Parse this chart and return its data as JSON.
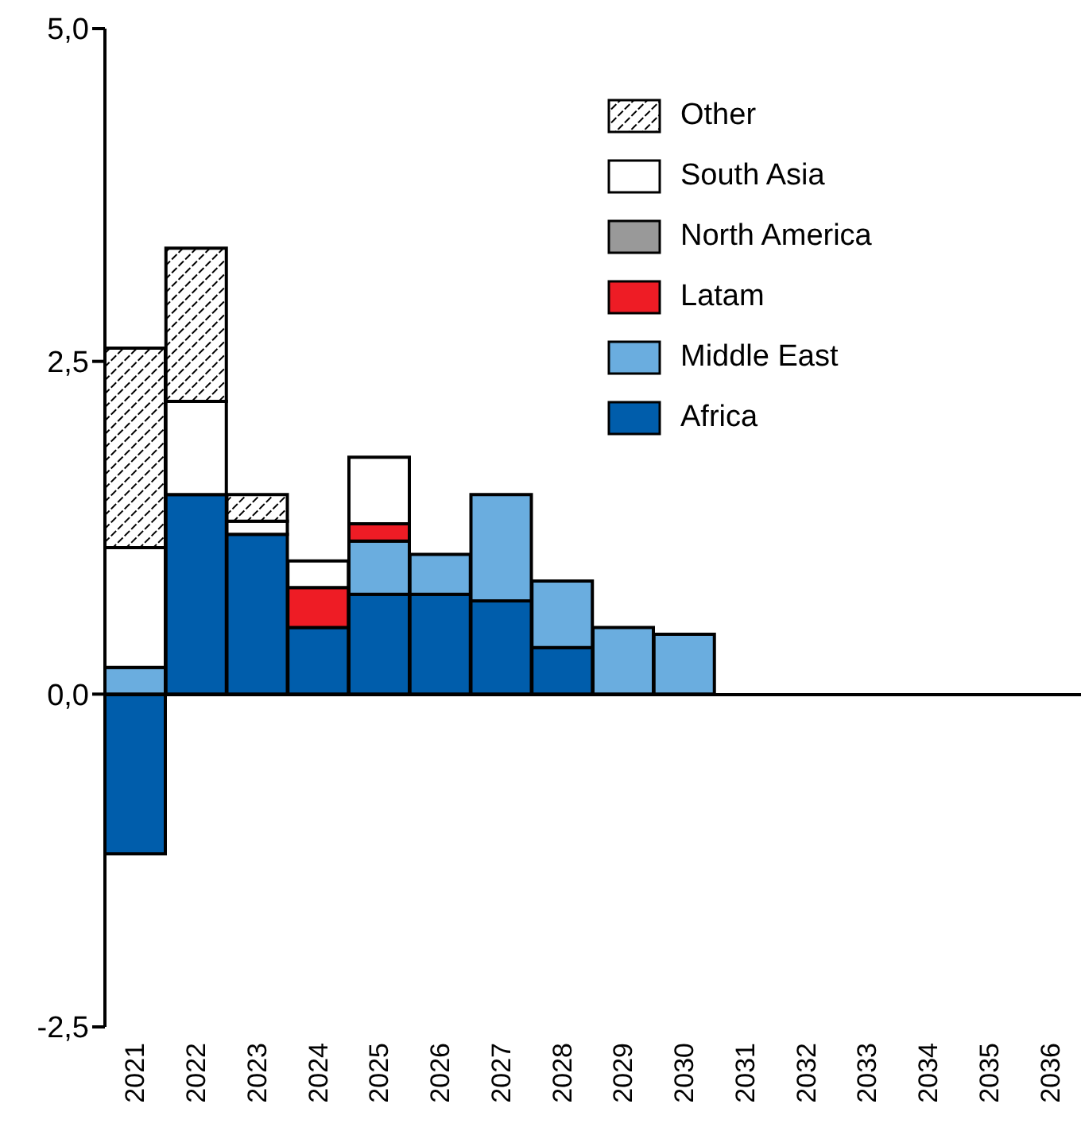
{
  "chart_data": {
    "type": "bar",
    "stacked": true,
    "categories": [
      "2021",
      "2022",
      "2023",
      "2024",
      "2025",
      "2026",
      "2027",
      "2028",
      "2029",
      "2030",
      "2031",
      "2032",
      "2033",
      "2034",
      "2035",
      "2036"
    ],
    "series": [
      {
        "name": "Africa",
        "color": "#005dab",
        "values": [
          -1.2,
          1.5,
          1.2,
          0.5,
          0.75,
          0.75,
          0.7,
          0.35,
          0,
          0,
          0,
          0,
          0,
          0,
          0,
          0
        ]
      },
      {
        "name": "Middle East",
        "color": "#6aaddf",
        "values": [
          0.2,
          0,
          0,
          0,
          0.4,
          0.3,
          0.8,
          0.5,
          0.5,
          0.45,
          0,
          0,
          0,
          0,
          0,
          0
        ]
      },
      {
        "name": "Latam",
        "color": "#ee1c25",
        "values": [
          0,
          0,
          0,
          0.3,
          0.13,
          0,
          0,
          0,
          0,
          0,
          0,
          0,
          0,
          0,
          0,
          0
        ]
      },
      {
        "name": "North America",
        "color": "#999999",
        "values": [
          0,
          0,
          0,
          0,
          0,
          0,
          0,
          0,
          0,
          0,
          0,
          0,
          0,
          0,
          0,
          0
        ]
      },
      {
        "name": "South Asia",
        "color": "#ffffff",
        "values": [
          0.9,
          0.7,
          0.1,
          0.2,
          0.5,
          0,
          0,
          0,
          0,
          0,
          0,
          0,
          0,
          0,
          0,
          0
        ]
      },
      {
        "name": "Other",
        "color": "#000000",
        "values": [
          1.5,
          1.15,
          0.2,
          0,
          0,
          0,
          0,
          0,
          0,
          0,
          0,
          0,
          0,
          0,
          0,
          0
        ]
      }
    ],
    "ylim": [
      -2.5,
      5
    ],
    "yticks": [
      {
        "value": -2.5,
        "label": "-2,5"
      },
      {
        "value": 0,
        "label": "0,0"
      },
      {
        "value": 2.5,
        "label": "2,5"
      },
      {
        "value": 5,
        "label": "5,0"
      }
    ],
    "legend": "top right"
  }
}
